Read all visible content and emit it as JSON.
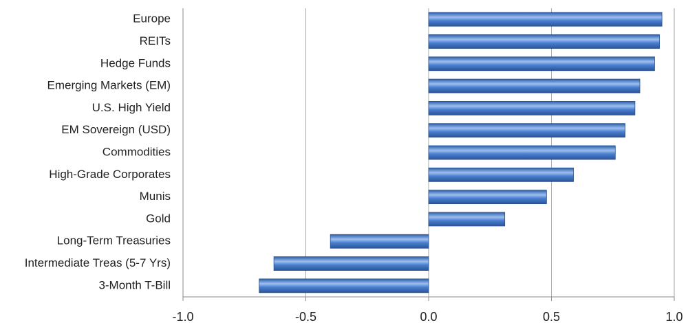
{
  "chart_data": {
    "type": "hbar",
    "categories": [
      "Europe",
      "REITs",
      "Hedge Funds",
      "Emerging Markets (EM)",
      "U.S. High Yield",
      "EM Sovereign (USD)",
      "Commodities",
      "High-Grade Corporates",
      "Munis",
      "Gold",
      "Long-Term Treasuries",
      "Intermediate Treas (5-7 Yrs)",
      "3-Month T-Bill"
    ],
    "values": [
      0.95,
      0.94,
      0.92,
      0.86,
      0.84,
      0.8,
      0.76,
      0.59,
      0.48,
      0.31,
      -0.4,
      -0.63,
      -0.69
    ],
    "color": "#4a7fd0",
    "xlim": [
      -1.0,
      1.0
    ],
    "xticks": [
      {
        "value": -1.0,
        "label": "-1.0"
      },
      -0.5,
      {
        "value": 0.0,
        "label": "0.0"
      },
      0.5,
      {
        "value": 1.0,
        "label": "1.0"
      }
    ],
    "grid": true
  }
}
